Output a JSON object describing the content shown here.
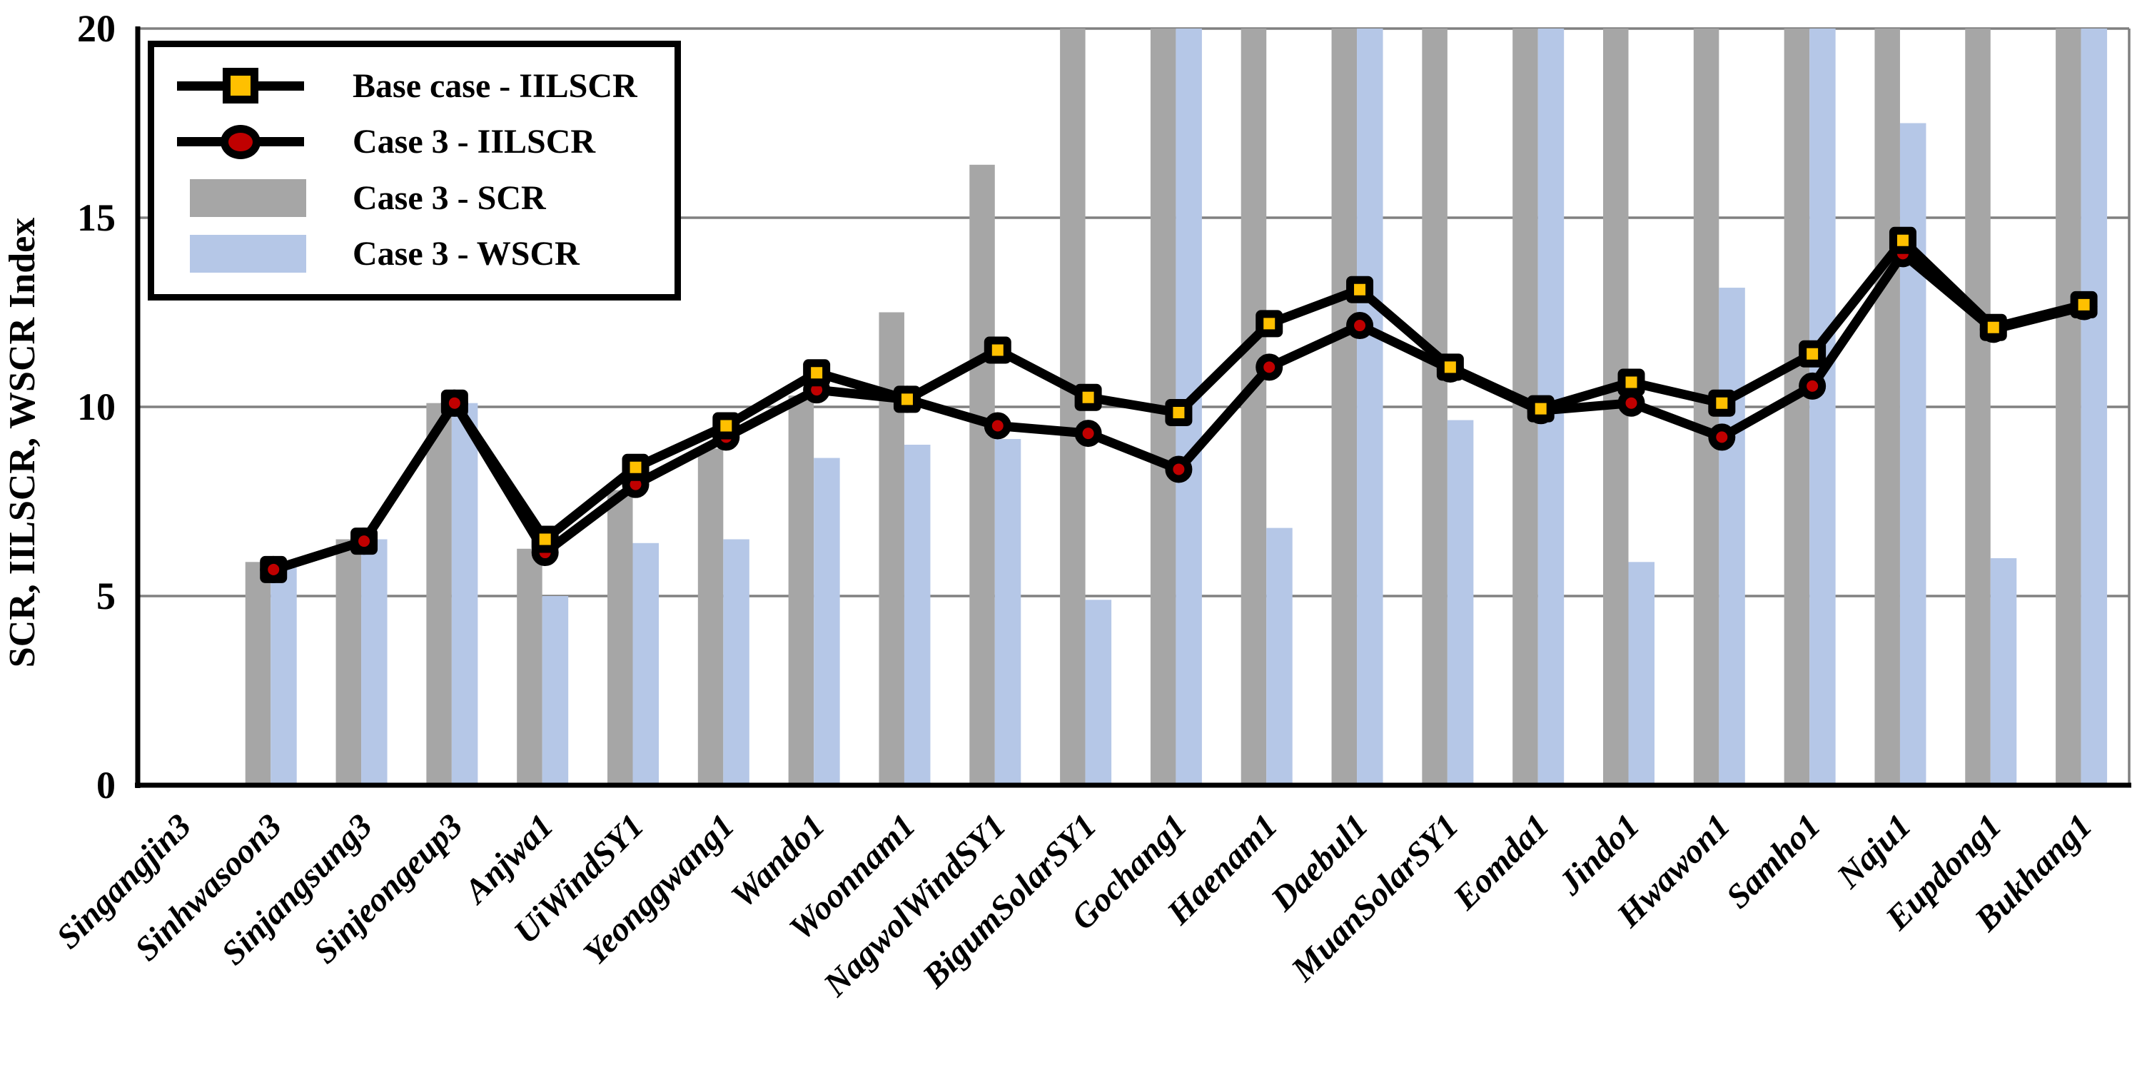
{
  "chart_data": {
    "type": "combo-bar-line",
    "title": "",
    "xlabel": "",
    "ylabel": "SCR, IILSCR, WSCR Index",
    "ylim": [
      0,
      20
    ],
    "yticks": [
      0,
      5,
      10,
      15,
      20
    ],
    "grid": "horizontal-gridlines",
    "legend_position": "top-left",
    "clipped_note": "Bars drawn to the very top of the plot exceed the y-axis maximum of 20 and are clipped; they are stored as 20.5. The first category (Singangjin3) has no plotted data. Line markers that coincide overlap (red circle on top for the first three data points, yellow square on top elsewhere).",
    "categories": [
      "Singangjin3",
      "Sinhwasoon3",
      "Sinjangsung3",
      "Sinjeongeup3",
      "Anjwa1",
      "UiWindSY1",
      "Yeonggwang1",
      "Wando1",
      "Woonnam1",
      "NagwolWindSY1",
      "BigumSolarSY1",
      "Gochang1",
      "Haenam1",
      "Daebul1",
      "MuanSolarSY1",
      "Eomda1",
      "Jindo1",
      "Hwawon1",
      "Samho1",
      "Naju1",
      "Eupdong1",
      "Bukhang1"
    ],
    "series": [
      {
        "name": "Base case - IILSCR",
        "type": "line",
        "marker": "square",
        "marker_color": "#ffc000",
        "line_color": "#000000",
        "values": [
          null,
          5.7,
          6.45,
          10.1,
          6.5,
          8.4,
          9.5,
          10.9,
          10.2,
          11.5,
          10.25,
          9.85,
          12.2,
          13.1,
          11.05,
          9.95,
          10.65,
          10.1,
          11.4,
          14.4,
          12.1,
          12.7
        ]
      },
      {
        "name": "Case 3 - IILSCR",
        "type": "line",
        "marker": "circle",
        "marker_color": "#c00000",
        "line_color": "#000000",
        "values": [
          null,
          5.7,
          6.45,
          10.1,
          6.15,
          7.95,
          9.2,
          10.45,
          10.2,
          9.5,
          9.3,
          8.35,
          11.05,
          12.15,
          11.0,
          9.9,
          10.1,
          9.2,
          10.55,
          14.05,
          12.05,
          12.65
        ]
      },
      {
        "name": "Case 3 - SCR",
        "type": "bar",
        "color": "#a6a6a6",
        "values": [
          null,
          5.9,
          6.5,
          10.1,
          6.25,
          7.8,
          8.9,
          10.3,
          12.5,
          16.4,
          20.5,
          20.5,
          20.5,
          20.5,
          20.5,
          20.5,
          20.5,
          20.5,
          20.5,
          20.5,
          20.5,
          20.5
        ]
      },
      {
        "name": "Case 3 - WSCR",
        "type": "bar",
        "color": "#b5c7e7",
        "values": [
          null,
          5.75,
          6.5,
          10.1,
          5.0,
          6.4,
          6.5,
          8.65,
          9.0,
          9.15,
          4.9,
          20.5,
          6.8,
          20.5,
          9.65,
          20.5,
          5.9,
          13.15,
          20.5,
          17.5,
          6.0,
          20.5
        ]
      }
    ],
    "axis_tick_labels": [
      "0",
      "5",
      "10",
      "15",
      "20"
    ]
  },
  "colors": {
    "scr_bar": "#a6a6a6",
    "wscr_bar": "#b5c7e7",
    "base_marker": "#ffc000",
    "case3_marker": "#c00000",
    "line": "#000000",
    "gridline": "#808080",
    "axis": "#000000",
    "background": "#ffffff"
  }
}
